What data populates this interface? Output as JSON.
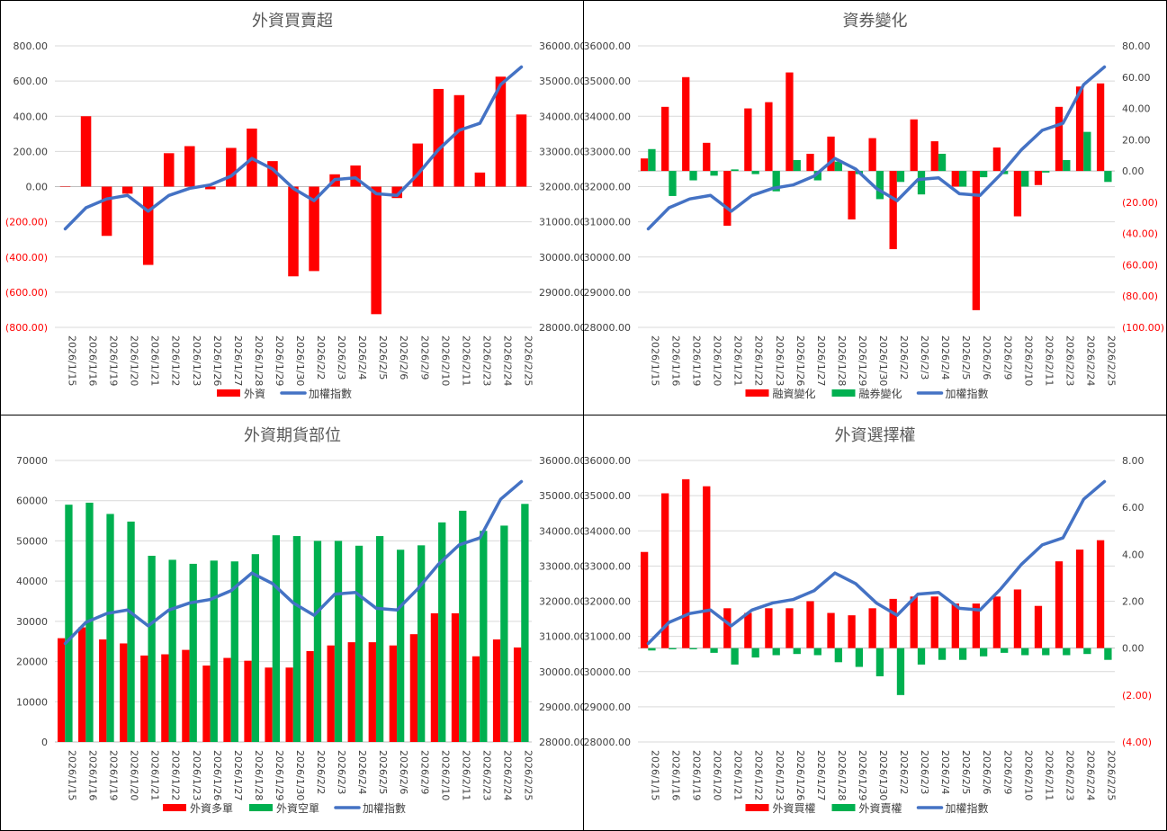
{
  "colors": {
    "red": "#ff0000",
    "green": "#00b050",
    "blue": "#4472c4",
    "grid": "#d9d9d9",
    "negative_text": "#ff0000"
  },
  "dates": [
    "2026/1/15",
    "2026/1/16",
    "2026/1/19",
    "2026/1/20",
    "2026/1/21",
    "2026/1/22",
    "2026/1/23",
    "2026/1/26",
    "2026/1/27",
    "2026/1/28",
    "2026/1/29",
    "2026/1/30",
    "2026/2/2",
    "2026/2/3",
    "2026/2/4",
    "2026/2/5",
    "2026/2/6",
    "2026/2/9",
    "2026/2/10",
    "2026/2/11",
    "2026/2/23",
    "2026/2/24",
    "2026/2/25"
  ],
  "chart_data": [
    {
      "type": "bar+line",
      "title": "外資買賣超",
      "categories_ref": "dates",
      "bar_axis": "left",
      "line_axis": "right",
      "left_axis": {
        "min": -800,
        "max": 800,
        "step": 200,
        "decimals": 2,
        "negative_format": "parens_red"
      },
      "right_axis": {
        "min": 28000,
        "max": 36000,
        "step": 1000,
        "decimals": 2
      },
      "series": [
        {
          "name": "外資",
          "kind": "bar",
          "color": "#ff0000",
          "values": [
            0,
            400,
            -280,
            -40,
            -445,
            190,
            230,
            -15,
            220,
            330,
            145,
            -510,
            -480,
            70,
            120,
            -725,
            -65,
            245,
            555,
            520,
            80,
            625,
            410
          ]
        },
        {
          "name": "加權指數",
          "kind": "line",
          "color": "#4472c4",
          "values": [
            30800,
            31400,
            31650,
            31750,
            31300,
            31750,
            31950,
            32050,
            32300,
            32800,
            32500,
            31950,
            31600,
            32200,
            32250,
            31800,
            31750,
            32350,
            33050,
            33600,
            33800,
            34900,
            35400
          ]
        }
      ],
      "legend": [
        "外資",
        "加權指數"
      ]
    },
    {
      "type": "bar+line",
      "title": "資券變化",
      "categories_ref": "dates",
      "bar_axis": "right",
      "line_axis": "left",
      "left_axis": {
        "min": 28000,
        "max": 36000,
        "step": 1000,
        "decimals": 2
      },
      "right_axis": {
        "min": -100,
        "max": 80,
        "step": 20,
        "decimals": 2,
        "negative_format": "parens_red"
      },
      "series": [
        {
          "name": "融資變化",
          "kind": "bar",
          "color": "#ff0000",
          "values": [
            8,
            41,
            60,
            18,
            -35,
            40,
            44,
            63,
            11,
            22,
            -31,
            21,
            -50,
            33,
            19,
            -10,
            -89,
            15,
            -29,
            -9,
            41,
            54,
            56
          ]
        },
        {
          "name": "融券變化",
          "kind": "bar",
          "color": "#00b050",
          "values": [
            14,
            -16,
            -6,
            -3,
            1,
            -2,
            -13,
            7,
            -6,
            6,
            -2,
            -18,
            -7,
            -15,
            11,
            -10,
            -4,
            -2,
            -10,
            -1,
            7,
            25,
            -7
          ]
        },
        {
          "name": "加權指數",
          "kind": "line",
          "color": "#4472c4",
          "values": [
            30800,
            31400,
            31650,
            31750,
            31300,
            31750,
            31950,
            32050,
            32300,
            32800,
            32500,
            31950,
            31600,
            32200,
            32250,
            31800,
            31750,
            32350,
            33050,
            33600,
            33800,
            34900,
            35400
          ]
        }
      ],
      "legend": [
        "融資變化",
        "融券變化",
        "加權指數"
      ]
    },
    {
      "type": "bar+line",
      "title": "外資期貨部位",
      "categories_ref": "dates",
      "bar_axis": "left",
      "line_axis": "right",
      "left_axis": {
        "min": 0,
        "max": 70000,
        "step": 10000,
        "decimals": 0
      },
      "right_axis": {
        "min": 28000,
        "max": 36000,
        "step": 1000,
        "decimals": 2
      },
      "series": [
        {
          "name": "外資多單",
          "kind": "bar",
          "color": "#ff0000",
          "values": [
            25800,
            28500,
            25500,
            24500,
            21500,
            21800,
            22900,
            19000,
            20900,
            20200,
            18500,
            18500,
            22600,
            24000,
            24800,
            24800,
            24000,
            26800,
            32000,
            32000,
            21300,
            25500,
            23500
          ]
        },
        {
          "name": "外資空單",
          "kind": "bar",
          "color": "#00b050",
          "values": [
            59000,
            59500,
            56700,
            54800,
            46300,
            45300,
            44300,
            45100,
            44900,
            46700,
            51400,
            51200,
            50000,
            50000,
            48800,
            51200,
            47800,
            48900,
            54600,
            57500,
            52500,
            53800,
            59200
          ]
        },
        {
          "name": "加權指數",
          "kind": "line",
          "color": "#4472c4",
          "values": [
            30800,
            31400,
            31650,
            31750,
            31300,
            31750,
            31950,
            32050,
            32300,
            32800,
            32500,
            31950,
            31600,
            32200,
            32250,
            31800,
            31750,
            32350,
            33050,
            33600,
            33800,
            34900,
            35400
          ]
        }
      ],
      "legend": [
        "外資多單",
        "外資空單",
        "加權指數"
      ]
    },
    {
      "type": "bar+line",
      "title": "外資選擇權",
      "categories_ref": "dates",
      "bar_axis": "right",
      "line_axis": "left",
      "left_axis": {
        "min": 28000,
        "max": 36000,
        "step": 1000,
        "decimals": 2
      },
      "right_axis": {
        "min": -4,
        "max": 8,
        "step": 2,
        "decimals": 2,
        "negative_format": "parens_red"
      },
      "series": [
        {
          "name": "外資買權",
          "kind": "bar",
          "color": "#ff0000",
          "values": [
            4.1,
            6.6,
            7.2,
            6.9,
            1.7,
            1.5,
            1.7,
            1.7,
            2.0,
            1.5,
            1.4,
            1.7,
            2.1,
            2.2,
            2.2,
            1.9,
            1.9,
            2.2,
            2.5,
            1.8,
            3.7,
            4.2,
            4.6
          ]
        },
        {
          "name": "外資賣權",
          "kind": "bar",
          "color": "#00b050",
          "values": [
            -0.1,
            -0.05,
            -0.05,
            -0.2,
            -0.7,
            -0.4,
            -0.3,
            -0.25,
            -0.3,
            -0.6,
            -0.8,
            -1.2,
            -2.0,
            -0.7,
            -0.5,
            -0.5,
            -0.35,
            -0.2,
            -0.3,
            -0.3,
            -0.3,
            -0.25,
            -0.5
          ]
        },
        {
          "name": "加權指數",
          "kind": "line",
          "color": "#4472c4",
          "values": [
            30800,
            31400,
            31650,
            31750,
            31300,
            31750,
            31950,
            32050,
            32300,
            32800,
            32500,
            31950,
            31600,
            32200,
            32250,
            31800,
            31750,
            32350,
            33050,
            33600,
            33800,
            34900,
            35400
          ]
        }
      ],
      "legend": [
        "外資買權",
        "外資賣權",
        "加權指數"
      ]
    }
  ]
}
